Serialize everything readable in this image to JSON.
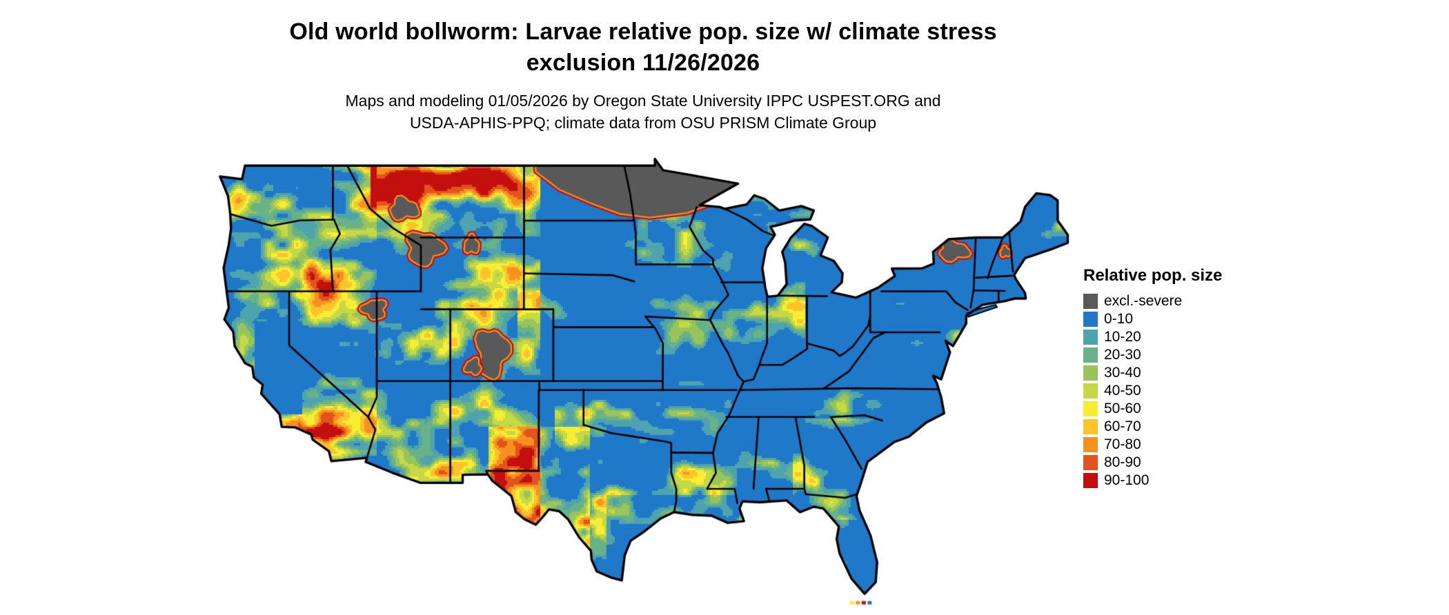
{
  "title": {
    "line1": "Old world bollworm: Larvae relative pop. size w/ climate stress",
    "line2": "exclusion 11/26/2026"
  },
  "subtitle": {
    "line1": "Maps and modeling 01/05/2026 by Oregon State University IPPC USPEST.ORG and",
    "line2": "USDA-APHIS-PPQ; climate data from OSU PRISM Climate Group"
  },
  "legend": {
    "title": "Relative pop. size",
    "items": [
      {
        "label": "excl.-severe",
        "color": "#595959"
      },
      {
        "label": "0-10",
        "color": "#1f78c8"
      },
      {
        "label": "10-20",
        "color": "#4da3ae"
      },
      {
        "label": "20-30",
        "color": "#68b287"
      },
      {
        "label": "30-40",
        "color": "#99c45c"
      },
      {
        "label": "40-50",
        "color": "#c6d844"
      },
      {
        "label": "50-60",
        "color": "#f7ee34"
      },
      {
        "label": "60-70",
        "color": "#fcc32b"
      },
      {
        "label": "70-80",
        "color": "#f6901e"
      },
      {
        "label": "80-90",
        "color": "#e2531d"
      },
      {
        "label": "90-100",
        "color": "#c40f0f"
      }
    ]
  }
}
